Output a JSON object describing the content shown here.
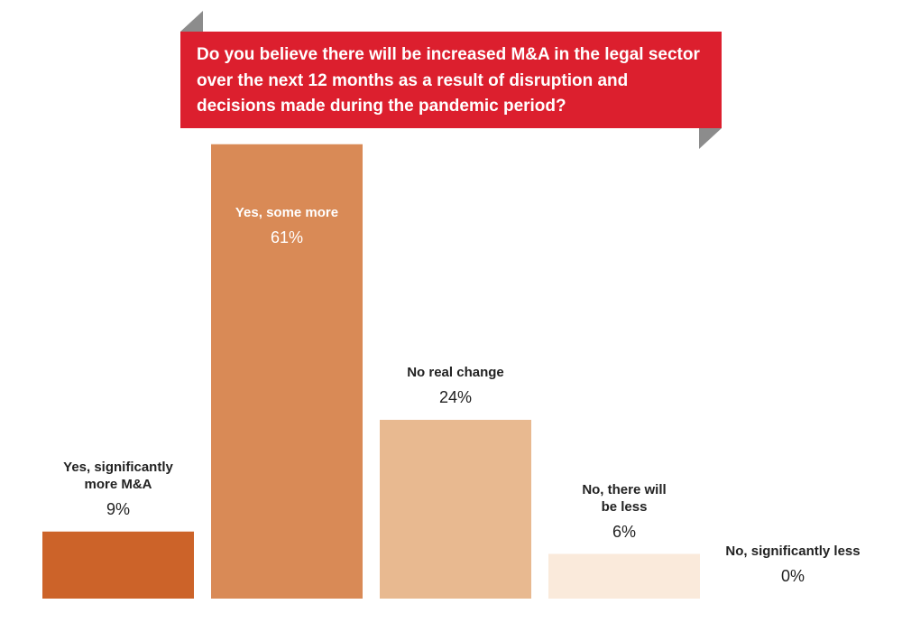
{
  "chart_data": {
    "type": "bar",
    "title": "Do you believe there will be increased M&A in the legal sector over the next 12 months as a result of disruption and decisions made during the pandemic period?",
    "categories": [
      "Yes, significantly more M&A",
      "Yes, some more",
      "No real change",
      "No, there will  be less",
      "No, significantly less"
    ],
    "values": [
      9,
      61,
      24,
      6,
      0
    ],
    "value_labels": [
      "9%",
      "61%",
      "24%",
      "6%",
      "0%"
    ],
    "colors": [
      "#cc6329",
      "#d98a56",
      "#e8b990",
      "#faeadb",
      "#fbeee3"
    ]
  }
}
